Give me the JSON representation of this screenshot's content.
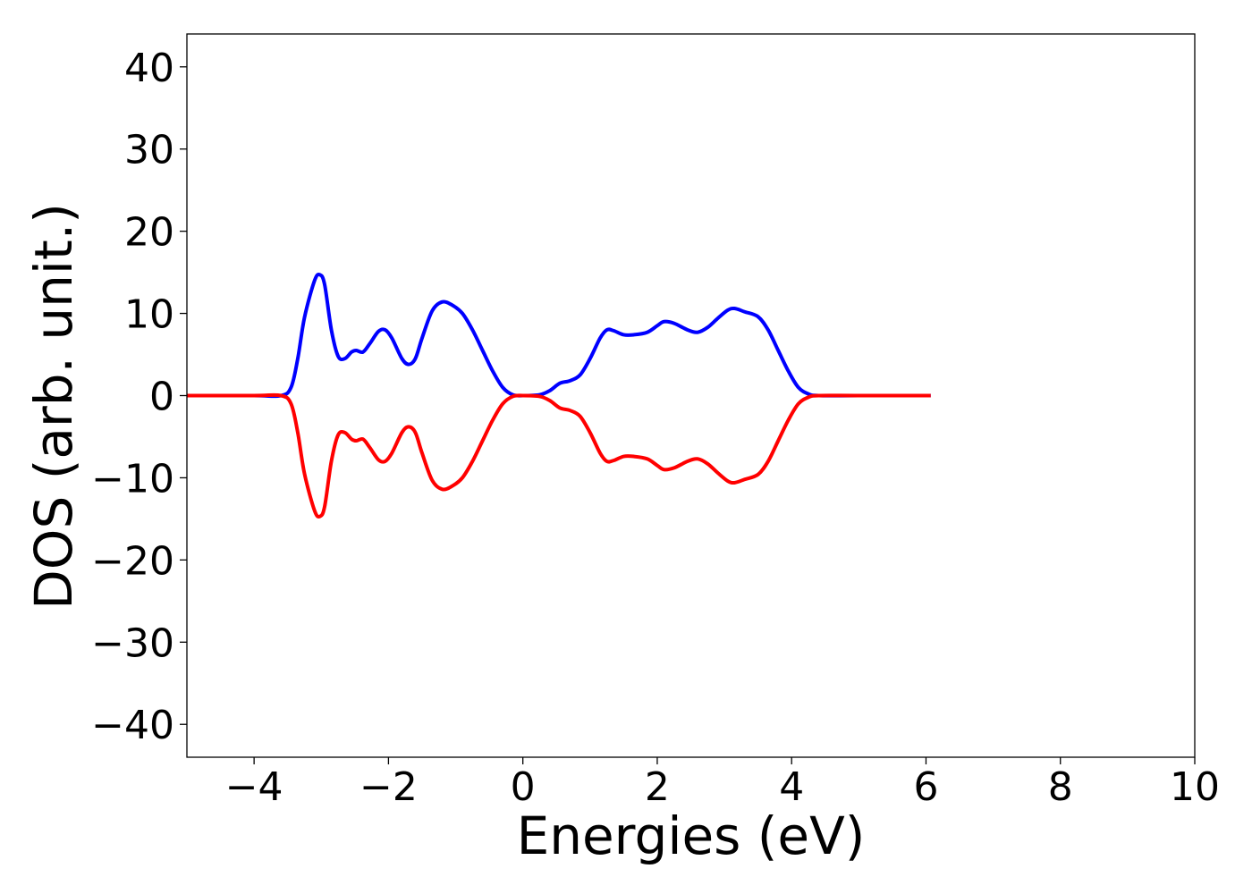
{
  "chart_data": {
    "type": "line",
    "title": "",
    "xlabel": "Energies (eV)",
    "ylabel": "DOS (arb. unit.)",
    "xlim": [
      -5,
      10
    ],
    "ylim": [
      -44,
      44
    ],
    "grid": false,
    "legend": "none",
    "xticks": [
      -4,
      -2,
      0,
      2,
      4,
      6,
      8,
      10
    ],
    "yticks": [
      -40,
      -30,
      -20,
      -10,
      0,
      10,
      20,
      30,
      40
    ],
    "xtick_labels": [
      "−4",
      "−2",
      "0",
      "2",
      "4",
      "6",
      "8",
      "10"
    ],
    "ytick_labels": [
      "−40",
      "−30",
      "−20",
      "−10",
      "0",
      "10",
      "20",
      "30",
      "40"
    ],
    "series": [
      {
        "color": "#0000ff",
        "points": [
          [
            -5.0,
            0
          ],
          [
            -4.0,
            0
          ],
          [
            -3.6,
            0.0
          ],
          [
            -3.45,
            1.0
          ],
          [
            -3.35,
            4.5
          ],
          [
            -3.25,
            9.5
          ],
          [
            -3.1,
            14.0
          ],
          [
            -3.02,
            14.7
          ],
          [
            -2.95,
            13.5
          ],
          [
            -2.85,
            8.0
          ],
          [
            -2.75,
            4.8
          ],
          [
            -2.65,
            4.5
          ],
          [
            -2.55,
            5.3
          ],
          [
            -2.48,
            5.5
          ],
          [
            -2.38,
            5.3
          ],
          [
            -2.28,
            6.3
          ],
          [
            -2.15,
            7.8
          ],
          [
            -2.05,
            8.0
          ],
          [
            -1.95,
            7.0
          ],
          [
            -1.8,
            4.5
          ],
          [
            -1.7,
            3.8
          ],
          [
            -1.6,
            4.5
          ],
          [
            -1.5,
            7.0
          ],
          [
            -1.35,
            10.3
          ],
          [
            -1.2,
            11.4
          ],
          [
            -1.05,
            11.0
          ],
          [
            -0.9,
            10.0
          ],
          [
            -0.75,
            8.0
          ],
          [
            -0.6,
            5.5
          ],
          [
            -0.45,
            3.0
          ],
          [
            -0.3,
            1.0
          ],
          [
            -0.15,
            0.1
          ],
          [
            0.0,
            0.0
          ],
          [
            0.25,
            0.1
          ],
          [
            0.4,
            0.6
          ],
          [
            0.55,
            1.5
          ],
          [
            0.7,
            1.8
          ],
          [
            0.85,
            2.5
          ],
          [
            1.0,
            4.5
          ],
          [
            1.15,
            7.0
          ],
          [
            1.25,
            8.0
          ],
          [
            1.35,
            7.9
          ],
          [
            1.5,
            7.4
          ],
          [
            1.65,
            7.4
          ],
          [
            1.85,
            7.7
          ],
          [
            2.0,
            8.5
          ],
          [
            2.1,
            9.0
          ],
          [
            2.25,
            8.8
          ],
          [
            2.45,
            8.0
          ],
          [
            2.6,
            7.7
          ],
          [
            2.75,
            8.3
          ],
          [
            2.9,
            9.4
          ],
          [
            3.05,
            10.4
          ],
          [
            3.15,
            10.6
          ],
          [
            3.3,
            10.2
          ],
          [
            3.5,
            9.6
          ],
          [
            3.65,
            8.0
          ],
          [
            3.8,
            5.5
          ],
          [
            3.95,
            3.0
          ],
          [
            4.1,
            1.0
          ],
          [
            4.25,
            0.2
          ],
          [
            4.4,
            0
          ],
          [
            5.0,
            0
          ],
          [
            6.07,
            0
          ]
        ]
      },
      {
        "color": "#ff0000",
        "points": [
          [
            -5.0,
            0
          ],
          [
            -4.0,
            0
          ],
          [
            -3.6,
            0.0
          ],
          [
            -3.45,
            -1.0
          ],
          [
            -3.35,
            -4.5
          ],
          [
            -3.25,
            -9.5
          ],
          [
            -3.1,
            -14.0
          ],
          [
            -3.02,
            -14.7
          ],
          [
            -2.95,
            -13.5
          ],
          [
            -2.85,
            -8.0
          ],
          [
            -2.75,
            -4.8
          ],
          [
            -2.65,
            -4.5
          ],
          [
            -2.55,
            -5.3
          ],
          [
            -2.48,
            -5.5
          ],
          [
            -2.38,
            -5.3
          ],
          [
            -2.28,
            -6.3
          ],
          [
            -2.15,
            -7.8
          ],
          [
            -2.05,
            -8.0
          ],
          [
            -1.95,
            -7.0
          ],
          [
            -1.8,
            -4.5
          ],
          [
            -1.7,
            -3.8
          ],
          [
            -1.6,
            -4.5
          ],
          [
            -1.5,
            -7.0
          ],
          [
            -1.35,
            -10.3
          ],
          [
            -1.2,
            -11.4
          ],
          [
            -1.05,
            -11.0
          ],
          [
            -0.9,
            -10.0
          ],
          [
            -0.75,
            -8.0
          ],
          [
            -0.6,
            -5.5
          ],
          [
            -0.45,
            -3.0
          ],
          [
            -0.3,
            -1.0
          ],
          [
            -0.15,
            -0.1
          ],
          [
            0.0,
            0.0
          ],
          [
            0.25,
            -0.1
          ],
          [
            0.4,
            -0.6
          ],
          [
            0.55,
            -1.5
          ],
          [
            0.7,
            -1.8
          ],
          [
            0.85,
            -2.5
          ],
          [
            1.0,
            -4.5
          ],
          [
            1.15,
            -7.0
          ],
          [
            1.25,
            -8.0
          ],
          [
            1.35,
            -7.9
          ],
          [
            1.5,
            -7.4
          ],
          [
            1.65,
            -7.4
          ],
          [
            1.85,
            -7.7
          ],
          [
            2.0,
            -8.5
          ],
          [
            2.1,
            -9.0
          ],
          [
            2.25,
            -8.8
          ],
          [
            2.45,
            -8.0
          ],
          [
            2.6,
            -7.7
          ],
          [
            2.75,
            -8.3
          ],
          [
            2.9,
            -9.4
          ],
          [
            3.05,
            -10.4
          ],
          [
            3.15,
            -10.6
          ],
          [
            3.3,
            -10.2
          ],
          [
            3.5,
            -9.6
          ],
          [
            3.65,
            -8.0
          ],
          [
            3.8,
            -5.5
          ],
          [
            3.95,
            -3.0
          ],
          [
            4.1,
            -1.0
          ],
          [
            4.25,
            -0.2
          ],
          [
            4.4,
            0
          ],
          [
            5.0,
            0
          ],
          [
            6.07,
            0
          ]
        ]
      }
    ]
  }
}
